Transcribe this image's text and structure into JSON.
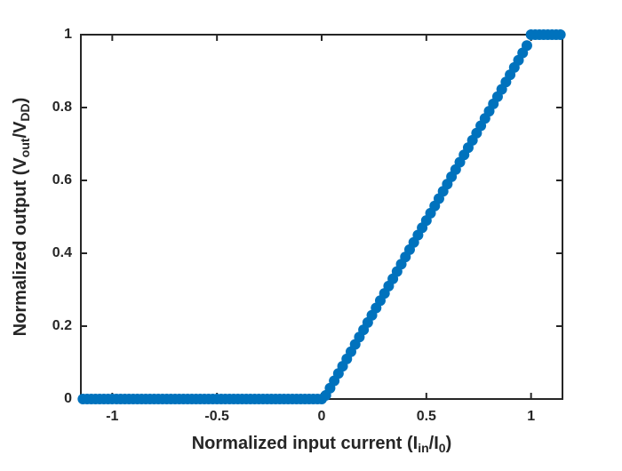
{
  "chart_data": {
    "type": "scatter",
    "xlabel_parts": [
      "Normalized input current (I",
      "in",
      "/I",
      "0",
      ")"
    ],
    "ylabel_parts": [
      "Normalized output (V",
      "out",
      "/V",
      "DD",
      ")"
    ],
    "xlim": [
      -1.15,
      1.15
    ],
    "ylim": [
      0,
      1
    ],
    "xticks": [
      -1,
      -0.5,
      0,
      0.5,
      1
    ],
    "yticks": [
      0,
      0.2,
      0.4,
      0.6,
      0.8,
      1
    ],
    "series": [
      {
        "color": "#0072BD",
        "x": [
          -1.14,
          -1.12,
          -1.1,
          -1.08,
          -1.06,
          -1.04,
          -1.02,
          -1,
          -0.98,
          -0.96,
          -0.94,
          -0.92,
          -0.9,
          -0.88,
          -0.86,
          -0.84,
          -0.82,
          -0.8,
          -0.78,
          -0.76,
          -0.74,
          -0.72,
          -0.7,
          -0.68,
          -0.66,
          -0.64,
          -0.62,
          -0.6,
          -0.58,
          -0.56,
          -0.54,
          -0.52,
          -0.5,
          -0.48,
          -0.46,
          -0.44,
          -0.42,
          -0.4,
          -0.38,
          -0.36,
          -0.34,
          -0.32,
          -0.3,
          -0.28,
          -0.26,
          -0.24,
          -0.22,
          -0.2,
          -0.18,
          -0.16,
          -0.14,
          -0.12,
          -0.1,
          -0.08,
          -0.06,
          -0.04,
          -0.02,
          0,
          0.02,
          0.04,
          0.06,
          0.08,
          0.1,
          0.12,
          0.14,
          0.16,
          0.18,
          0.2,
          0.22,
          0.24,
          0.26,
          0.28,
          0.3,
          0.32,
          0.34,
          0.36,
          0.38,
          0.4,
          0.42,
          0.44,
          0.46,
          0.48,
          0.5,
          0.52,
          0.54,
          0.56,
          0.58,
          0.6,
          0.62,
          0.64,
          0.66,
          0.68,
          0.7,
          0.72,
          0.74,
          0.76,
          0.78,
          0.8,
          0.82,
          0.84,
          0.86,
          0.88,
          0.9,
          0.92,
          0.94,
          0.96,
          0.98,
          1,
          1.02,
          1.04,
          1.06,
          1.08,
          1.1,
          1.12,
          1.14
        ],
        "values": [
          0,
          0,
          0,
          0,
          0,
          0,
          0,
          0,
          0,
          0,
          0,
          0,
          0,
          0,
          0,
          0,
          0,
          0,
          0,
          0,
          0,
          0,
          0,
          0,
          0,
          0,
          0,
          0,
          0,
          0,
          0,
          0,
          0,
          0,
          0,
          0,
          0,
          0,
          0,
          0,
          0,
          0,
          0,
          0,
          0,
          0,
          0,
          0,
          0,
          0,
          0,
          0,
          0,
          0,
          0,
          0,
          0,
          0,
          0.01,
          0.03,
          0.05,
          0.07,
          0.09,
          0.11,
          0.13,
          0.15,
          0.17,
          0.19,
          0.21,
          0.23,
          0.25,
          0.27,
          0.29,
          0.31,
          0.33,
          0.35,
          0.37,
          0.39,
          0.41,
          0.43,
          0.45,
          0.47,
          0.49,
          0.51,
          0.53,
          0.55,
          0.57,
          0.59,
          0.61,
          0.63,
          0.65,
          0.67,
          0.69,
          0.71,
          0.73,
          0.75,
          0.77,
          0.79,
          0.81,
          0.83,
          0.85,
          0.87,
          0.89,
          0.91,
          0.93,
          0.95,
          0.97,
          1,
          1,
          1,
          1,
          1,
          1,
          1,
          1
        ]
      }
    ]
  }
}
